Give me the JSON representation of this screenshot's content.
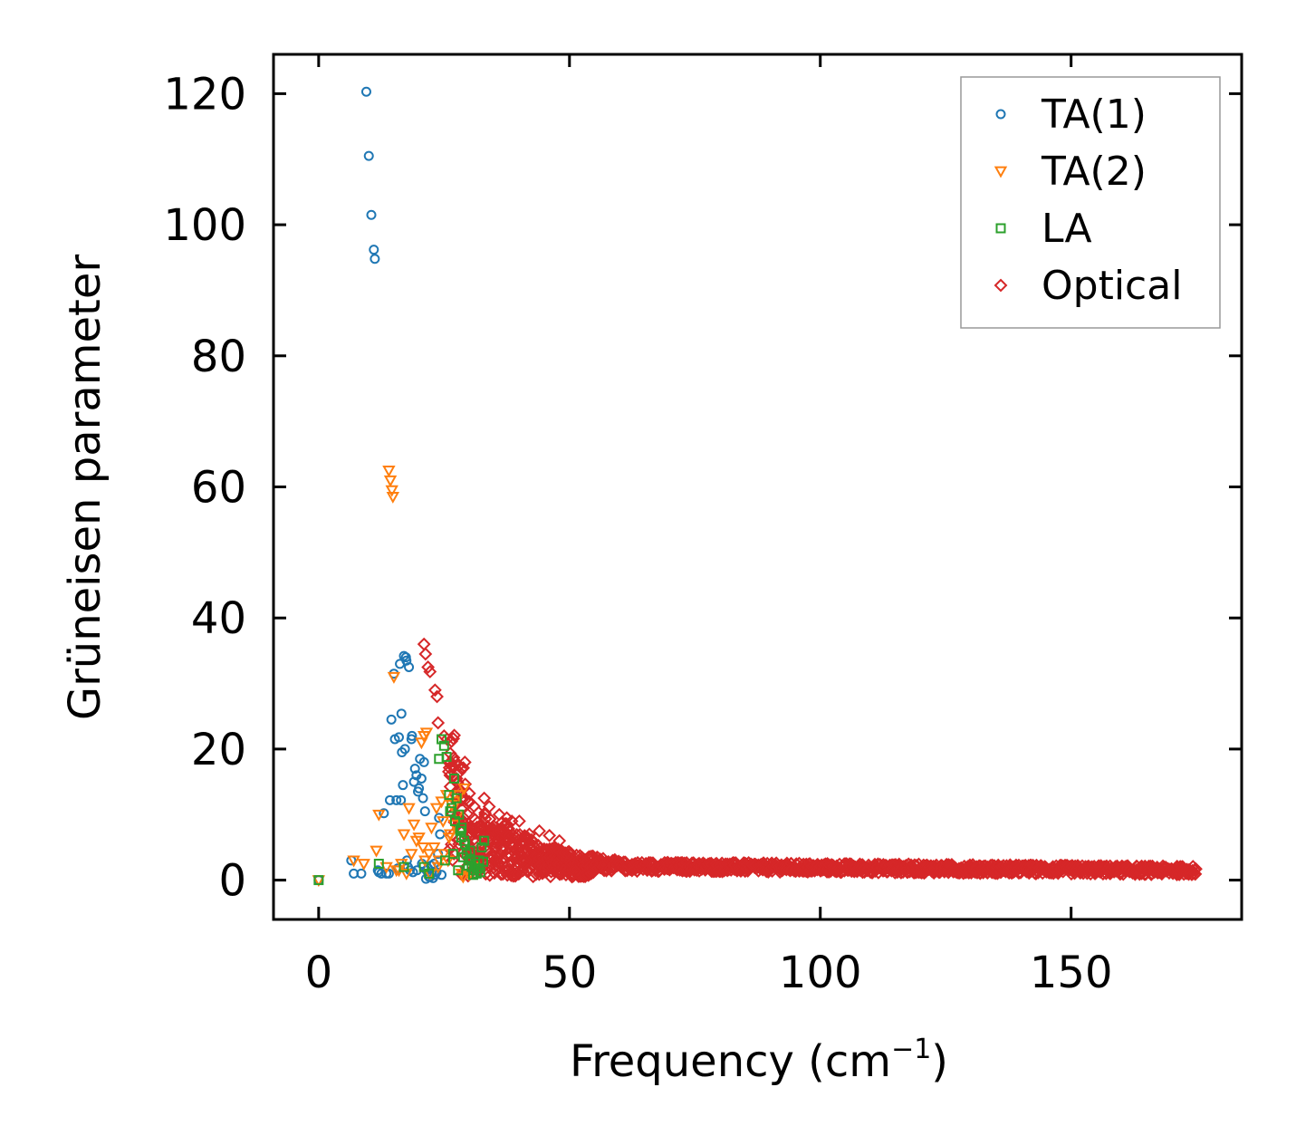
{
  "chart_data": {
    "type": "scatter",
    "xlabel": "Frequency (cm",
    "xlabel_sup": "−1",
    "xlabel_end": ")",
    "ylabel": "Grüneisen parameter",
    "xlim": [
      -9,
      184
    ],
    "ylim": [
      -6,
      126
    ],
    "xticks": [
      0,
      50,
      100,
      150
    ],
    "xtick_labels": [
      "0",
      "50",
      "100",
      "150"
    ],
    "yticks": [
      0,
      20,
      40,
      60,
      80,
      100,
      120
    ],
    "ytick_labels": [
      "0",
      "20",
      "40",
      "60",
      "80",
      "100",
      "120"
    ],
    "legend_position": "top-right",
    "series": [
      {
        "name": "TA(1)",
        "color": "#1f77b4",
        "marker": "circle",
        "x": [
          0,
          6.5,
          7,
          8.5,
          9.5,
          10,
          10.5,
          11,
          11.2,
          12,
          13,
          14,
          14.5,
          15,
          15.5,
          16,
          16.5,
          16.2,
          17,
          17.5,
          18,
          18.2,
          17.2,
          16.8,
          18.5,
          19,
          19.5,
          20,
          20.5,
          21,
          21.2,
          20.8,
          19.8,
          19.2,
          21.5,
          22,
          22.5,
          23,
          23.5,
          24,
          24.2,
          22.8,
          23.2,
          17.8,
          18.8,
          15.2,
          14.2,
          13.5,
          16.6,
          17.4,
          18.6,
          20.2,
          21.8,
          22.4,
          23.8,
          24.5,
          19.6,
          20.6,
          17.6,
          16.4,
          15.8,
          12.5,
          11.8,
          21.4,
          22.2
        ],
        "y": [
          0,
          3,
          1,
          1,
          120.3,
          110.5,
          101.5,
          96.2,
          94.8,
          1.2,
          10.2,
          1,
          24.5,
          31.5,
          12.2,
          21.8,
          25.4,
          33,
          34.2,
          33.5,
          32.5,
          1.5,
          20,
          14.5,
          21.5,
          15,
          16,
          14,
          15.5,
          18,
          10.5,
          12.5,
          13.5,
          17,
          1.5,
          0.5,
          1,
          2.5,
          1.2,
          9.5,
          7,
          0.3,
          0.8,
          2,
          1.2,
          21.5,
          12.2,
          1,
          19.5,
          34,
          22,
          18.5,
          1.8,
          2.2,
          4,
          0.8,
          1.5,
          2.5,
          3,
          12.2,
          1.8,
          1,
          1.5,
          0.2,
          0.5
        ]
      },
      {
        "name": "TA(2)",
        "color": "#ff7f0e",
        "marker": "triangle-down",
        "x": [
          0,
          7,
          9,
          11.5,
          12,
          13.5,
          14,
          14.3,
          14.6,
          14.8,
          15,
          15.5,
          16,
          17,
          18,
          19,
          20,
          20.5,
          21,
          21.5,
          22,
          22.5,
          23,
          23.5,
          24,
          24.5,
          25,
          25.5,
          26,
          26.5,
          27,
          27.5,
          28,
          28.5,
          29,
          30,
          31,
          20.8,
          21.2,
          19.5,
          24.8,
          23.8,
          26.2,
          27.8,
          28.8,
          22.2,
          18.5,
          17.5,
          16.5,
          25.8
        ],
        "y": [
          0,
          3,
          2.5,
          4.5,
          10,
          2,
          62.5,
          61,
          59.5,
          58.5,
          31,
          1.5,
          1.5,
          7,
          11,
          8.5,
          6.5,
          21,
          22,
          22.5,
          4,
          8,
          5,
          11,
          3,
          12,
          4,
          13,
          6.5,
          11.5,
          8.5,
          12,
          13,
          1,
          14,
          0.8,
          2,
          5,
          3,
          6,
          9,
          2,
          7,
          10,
          0.5,
          1,
          4,
          1,
          2.5,
          3
        ]
      },
      {
        "name": "LA",
        "color": "#2ca02c",
        "marker": "square",
        "x": [
          0,
          12,
          17,
          21,
          22,
          24,
          24.5,
          25,
          25.5,
          26,
          26.5,
          27,
          27.5,
          28,
          28.5,
          29,
          29.5,
          30,
          30.5,
          31,
          31.5,
          32,
          32.5,
          33,
          28.2,
          29.2,
          30.2,
          31.2,
          32.2,
          27.2,
          26.2,
          25.2,
          28.8,
          29.8,
          30.8,
          27.8,
          26.8,
          31.8,
          32.8,
          28.4
        ],
        "y": [
          0,
          2.5,
          2,
          2,
          1,
          18.5,
          21.5,
          20.5,
          18.8,
          13,
          11,
          15.5,
          12.5,
          10,
          8,
          6,
          4,
          3,
          2,
          1.5,
          1,
          3,
          5,
          6,
          7.5,
          5.5,
          4.5,
          2.5,
          1.2,
          9,
          10.5,
          3,
          3.5,
          2.2,
          0.8,
          1.5,
          4,
          1.8,
          2.8,
          6.5
        ]
      },
      {
        "name": "Optical",
        "color": "#d62728",
        "marker": "diamond"
      }
    ]
  }
}
